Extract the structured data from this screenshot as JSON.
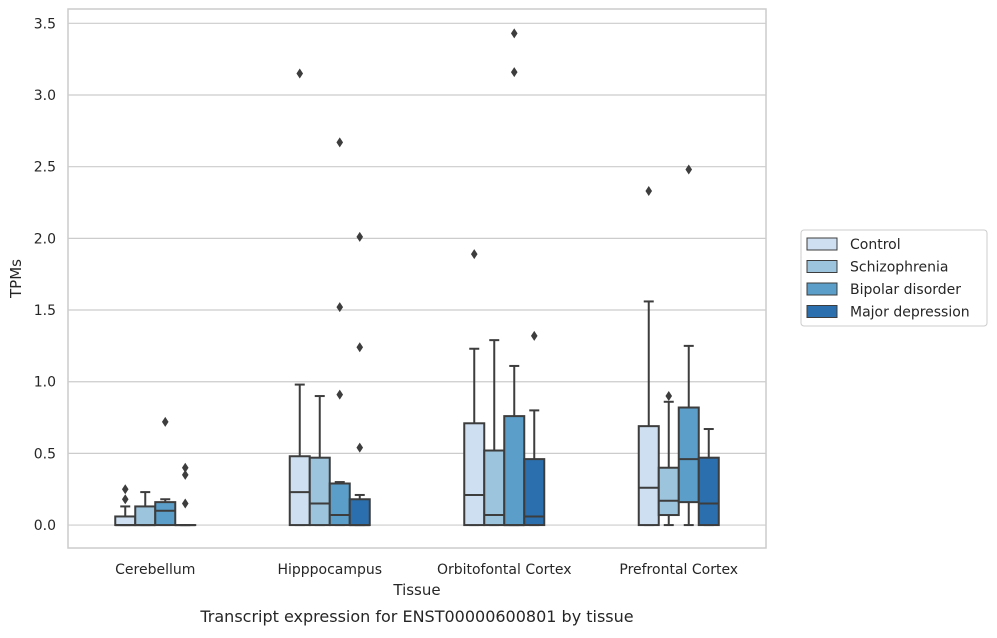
{
  "chart_data": {
    "type": "box",
    "caption": "Transcript expression for ENST00000600801 by tissue",
    "xlabel": "Tissue",
    "ylabel": "TPMs",
    "ylim": [
      -0.16,
      3.6
    ],
    "yticks": [
      0.0,
      0.5,
      1.0,
      1.5,
      2.0,
      2.5,
      3.0,
      3.5
    ],
    "ytick_labels": [
      "0.0",
      "0.5",
      "1.0",
      "1.5",
      "2.0",
      "2.5",
      "3.0",
      "3.5"
    ],
    "grid": "horizontal",
    "legend_position": "outside-right",
    "categories": [
      "Cerebellum",
      "Hipppocampus",
      "Orbitofontal Cortex",
      "Prefrontal Cortex"
    ],
    "series": [
      {
        "name": "Control",
        "color": "#cddff0",
        "boxes": [
          {
            "whisker_low": 0.0,
            "q1": 0.0,
            "median": 0.0,
            "q3": 0.06,
            "whisker_high": 0.13,
            "outliers": [
              0.18,
              0.25
            ]
          },
          {
            "whisker_low": 0.0,
            "q1": 0.0,
            "median": 0.23,
            "q3": 0.48,
            "whisker_high": 0.98,
            "outliers": [
              3.15
            ]
          },
          {
            "whisker_low": 0.0,
            "q1": 0.0,
            "median": 0.21,
            "q3": 0.71,
            "whisker_high": 1.23,
            "outliers": [
              1.89
            ]
          },
          {
            "whisker_low": 0.0,
            "q1": 0.0,
            "median": 0.26,
            "q3": 0.69,
            "whisker_high": 1.56,
            "outliers": [
              2.33
            ]
          }
        ]
      },
      {
        "name": "Schizophrenia",
        "color": "#9cc4dc",
        "boxes": [
          {
            "whisker_low": 0.0,
            "q1": 0.0,
            "median": 0.0,
            "q3": 0.13,
            "whisker_high": 0.23,
            "outliers": []
          },
          {
            "whisker_low": 0.0,
            "q1": 0.0,
            "median": 0.15,
            "q3": 0.47,
            "whisker_high": 0.9,
            "outliers": []
          },
          {
            "whisker_low": 0.0,
            "q1": 0.0,
            "median": 0.07,
            "q3": 0.52,
            "whisker_high": 1.29,
            "outliers": []
          },
          {
            "whisker_low": 0.0,
            "q1": 0.07,
            "median": 0.17,
            "q3": 0.4,
            "whisker_high": 0.86,
            "outliers": [
              0.9
            ]
          }
        ]
      },
      {
        "name": "Bipolar disorder",
        "color": "#5a9ec9",
        "boxes": [
          {
            "whisker_low": 0.0,
            "q1": 0.0,
            "median": 0.1,
            "q3": 0.16,
            "whisker_high": 0.18,
            "outliers": [
              0.72
            ]
          },
          {
            "whisker_low": 0.0,
            "q1": 0.0,
            "median": 0.07,
            "q3": 0.29,
            "whisker_high": 0.3,
            "outliers": [
              0.91,
              1.52,
              2.67
            ]
          },
          {
            "whisker_low": 0.0,
            "q1": 0.0,
            "median": 0.0,
            "q3": 0.76,
            "whisker_high": 1.11,
            "outliers": [
              3.16,
              3.43
            ]
          },
          {
            "whisker_low": 0.0,
            "q1": 0.16,
            "median": 0.46,
            "q3": 0.82,
            "whisker_high": 1.25,
            "outliers": [
              2.48
            ]
          }
        ]
      },
      {
        "name": "Major depression",
        "color": "#2c6fae",
        "boxes": [
          {
            "whisker_low": 0.0,
            "q1": 0.0,
            "median": 0.0,
            "q3": 0.0,
            "whisker_high": 0.0,
            "outliers": [
              0.15,
              0.35,
              0.4
            ]
          },
          {
            "whisker_low": 0.0,
            "q1": 0.0,
            "median": 0.0,
            "q3": 0.18,
            "whisker_high": 0.21,
            "outliers": [
              0.54,
              1.24,
              2.01
            ]
          },
          {
            "whisker_low": 0.0,
            "q1": 0.0,
            "median": 0.06,
            "q3": 0.46,
            "whisker_high": 0.8,
            "outliers": [
              1.32
            ]
          },
          {
            "whisker_low": 0.0,
            "q1": 0.0,
            "median": 0.15,
            "q3": 0.47,
            "whisker_high": 0.67,
            "outliers": []
          }
        ]
      }
    ]
  }
}
